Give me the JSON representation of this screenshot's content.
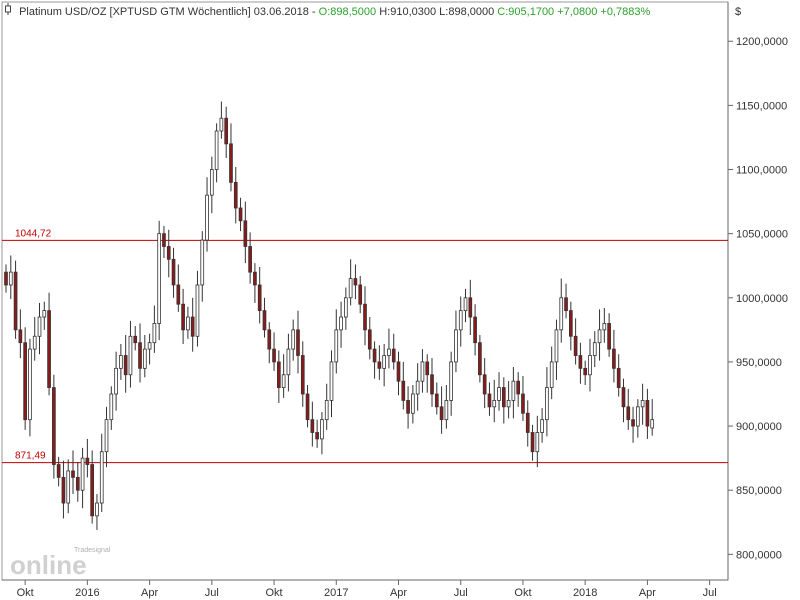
{
  "header": {
    "icon": "candle-icon",
    "instrument": "Platinum USD/OZ [XPTUSD GTM  Wöchentlich]",
    "date": "03.06.2018",
    "open": "O:898,5000",
    "high": "H:910,0300",
    "low": "L:898,0000",
    "close": "C:905,1700",
    "change_abs": "+7,0800",
    "change_pct": "+0,7883%"
  },
  "logo": {
    "brand": "Tradesignal",
    "text": "online"
  },
  "colors": {
    "up": "#ffffff",
    "down": "#8b1a1a",
    "wick": "#333333",
    "hline": "#c00000",
    "gain": "#2ca02c"
  },
  "chart_data": {
    "type": "candlestick",
    "currency_label": "$",
    "y_ticks": [
      "800,0000",
      "850,0000",
      "900,0000",
      "950,0000",
      "1000,0000",
      "1050,0000",
      "1100,0000",
      "1150,0000",
      "1200,0000"
    ],
    "x_ticks": [
      {
        "label": "Okt",
        "week": 4
      },
      {
        "label": "2016",
        "week": 17
      },
      {
        "label": "Apr",
        "week": 30
      },
      {
        "label": "Jul",
        "week": 43
      },
      {
        "label": "Okt",
        "week": 56
      },
      {
        "label": "2017",
        "week": 69
      },
      {
        "label": "Apr",
        "week": 82
      },
      {
        "label": "Jul",
        "week": 95
      },
      {
        "label": "Okt",
        "week": 108
      },
      {
        "label": "2018",
        "week": 121
      },
      {
        "label": "Apr",
        "week": 134
      },
      {
        "label": "Jul",
        "week": 147
      }
    ],
    "ylim": [
      780,
      1215
    ],
    "xlim": [
      0,
      150
    ],
    "hlines": [
      {
        "value": 1044.72,
        "label": "1044,72"
      },
      {
        "value": 871.49,
        "label": "871,49"
      }
    ],
    "closes": [
      1010,
      1020,
      975,
      965,
      905,
      960,
      970,
      985,
      990,
      930,
      870,
      860,
      840,
      865,
      860,
      850,
      875,
      870,
      830,
      840,
      880,
      905,
      925,
      945,
      955,
      940,
      970,
      965,
      945,
      960,
      965,
      980,
      1050,
      1040,
      1030,
      1010,
      995,
      975,
      985,
      970,
      1010,
      1045,
      1080,
      1100,
      1130,
      1140,
      1120,
      1090,
      1070,
      1060,
      1040,
      1020,
      1010,
      990,
      975,
      960,
      950,
      930,
      940,
      960,
      975,
      955,
      925,
      905,
      895,
      890,
      905,
      920,
      950,
      975,
      985,
      1000,
      1015,
      1010,
      995,
      975,
      960,
      950,
      945,
      955,
      960,
      950,
      935,
      920,
      910,
      925,
      935,
      950,
      940,
      925,
      915,
      905,
      920,
      950,
      975,
      990,
      1000,
      985,
      965,
      940,
      925,
      915,
      920,
      930,
      915,
      920,
      935,
      925,
      910,
      895,
      880,
      895,
      905,
      930,
      950,
      975,
      1000,
      990,
      970,
      955,
      945,
      940,
      955,
      965,
      975,
      980,
      960,
      945,
      930,
      915,
      905,
      900,
      915,
      920,
      900,
      905
    ],
    "opens": [
      1020,
      1010,
      1020,
      975,
      965,
      905,
      960,
      970,
      985,
      990,
      930,
      870,
      860,
      840,
      865,
      860,
      850,
      875,
      870,
      830,
      840,
      880,
      905,
      925,
      945,
      955,
      940,
      970,
      965,
      945,
      960,
      965,
      980,
      1050,
      1040,
      1030,
      1010,
      995,
      975,
      985,
      970,
      1010,
      1045,
      1080,
      1100,
      1130,
      1140,
      1120,
      1090,
      1070,
      1060,
      1040,
      1020,
      1010,
      990,
      975,
      960,
      950,
      930,
      940,
      960,
      975,
      955,
      925,
      905,
      895,
      890,
      905,
      920,
      950,
      975,
      985,
      1000,
      1015,
      1010,
      995,
      975,
      960,
      950,
      945,
      955,
      960,
      950,
      935,
      920,
      910,
      925,
      935,
      950,
      940,
      925,
      915,
      905,
      920,
      950,
      975,
      990,
      1000,
      985,
      965,
      940,
      925,
      915,
      920,
      930,
      915,
      920,
      935,
      925,
      910,
      895,
      880,
      895,
      905,
      930,
      950,
      975,
      1000,
      990,
      970,
      955,
      945,
      940,
      955,
      965,
      975,
      980,
      960,
      945,
      930,
      915,
      905,
      900,
      915,
      920,
      898.5
    ]
  }
}
